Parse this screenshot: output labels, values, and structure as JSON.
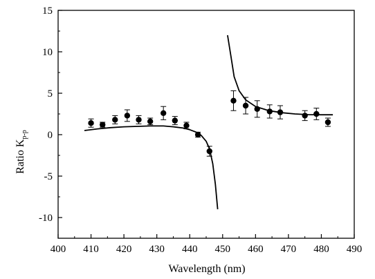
{
  "chart_data": {
    "type": "scatter",
    "title": "",
    "xlabel": "Wavelength (nm)",
    "ylabel": {
      "main": "Ratio K",
      "subscript": "p-p"
    },
    "xlim": [
      400,
      490
    ],
    "ylim": [
      -12.5,
      15
    ],
    "xticks": [
      400,
      410,
      420,
      430,
      440,
      450,
      460,
      470,
      480,
      490
    ],
    "yticks": [
      15,
      10,
      5,
      0,
      -5,
      -10
    ],
    "grid": false,
    "legend": "none",
    "series": [
      {
        "kind": "points-with-error-bars",
        "points": [
          {
            "x": 410.0,
            "y": 1.4,
            "err": 0.5
          },
          {
            "x": 413.5,
            "y": 1.2,
            "err": 0.3
          },
          {
            "x": 417.3,
            "y": 1.8,
            "err": 0.5
          },
          {
            "x": 421.0,
            "y": 2.3,
            "err": 0.7
          },
          {
            "x": 424.5,
            "y": 1.8,
            "err": 0.5
          },
          {
            "x": 428.0,
            "y": 1.6,
            "err": 0.4
          },
          {
            "x": 432.0,
            "y": 2.6,
            "err": 0.8
          },
          {
            "x": 435.5,
            "y": 1.7,
            "err": 0.5
          },
          {
            "x": 439.0,
            "y": 1.1,
            "err": 0.4
          },
          {
            "x": 442.5,
            "y": 0.0,
            "err": 0.3
          },
          {
            "x": 446.0,
            "y": -2.0,
            "err": 0.6
          },
          {
            "x": 453.3,
            "y": 4.1,
            "err": 1.2
          },
          {
            "x": 457.0,
            "y": 3.5,
            "err": 1.0
          },
          {
            "x": 460.5,
            "y": 3.1,
            "err": 1.0
          },
          {
            "x": 464.3,
            "y": 2.8,
            "err": 0.8
          },
          {
            "x": 467.5,
            "y": 2.7,
            "err": 0.8
          },
          {
            "x": 475.0,
            "y": 2.3,
            "err": 0.6
          },
          {
            "x": 478.5,
            "y": 2.5,
            "err": 0.7
          },
          {
            "x": 482.0,
            "y": 1.5,
            "err": 0.5
          }
        ]
      },
      {
        "kind": "line",
        "segments": [
          [
            {
              "x": 408,
              "y": 0.5
            },
            {
              "x": 412,
              "y": 0.7
            },
            {
              "x": 416,
              "y": 0.85
            },
            {
              "x": 420,
              "y": 0.95
            },
            {
              "x": 424,
              "y": 1.0
            },
            {
              "x": 428,
              "y": 1.05
            },
            {
              "x": 432,
              "y": 1.05
            },
            {
              "x": 435,
              "y": 0.95
            },
            {
              "x": 438,
              "y": 0.8
            },
            {
              "x": 440,
              "y": 0.6
            },
            {
              "x": 442,
              "y": 0.3
            },
            {
              "x": 443.5,
              "y": -0.1
            },
            {
              "x": 445,
              "y": -0.8
            },
            {
              "x": 446,
              "y": -1.7
            },
            {
              "x": 447,
              "y": -3.5
            },
            {
              "x": 447.8,
              "y": -6.0
            },
            {
              "x": 448.5,
              "y": -9.0
            }
          ],
          [
            {
              "x": 451.5,
              "y": 12.0
            },
            {
              "x": 452.5,
              "y": 9.5
            },
            {
              "x": 453.5,
              "y": 7.0
            },
            {
              "x": 455,
              "y": 5.3
            },
            {
              "x": 457,
              "y": 4.2
            },
            {
              "x": 460,
              "y": 3.4
            },
            {
              "x": 464,
              "y": 2.9
            },
            {
              "x": 468,
              "y": 2.65
            },
            {
              "x": 472,
              "y": 2.5
            },
            {
              "x": 476,
              "y": 2.42
            },
            {
              "x": 480,
              "y": 2.4
            },
            {
              "x": 483.5,
              "y": 2.4
            }
          ]
        ]
      }
    ]
  }
}
